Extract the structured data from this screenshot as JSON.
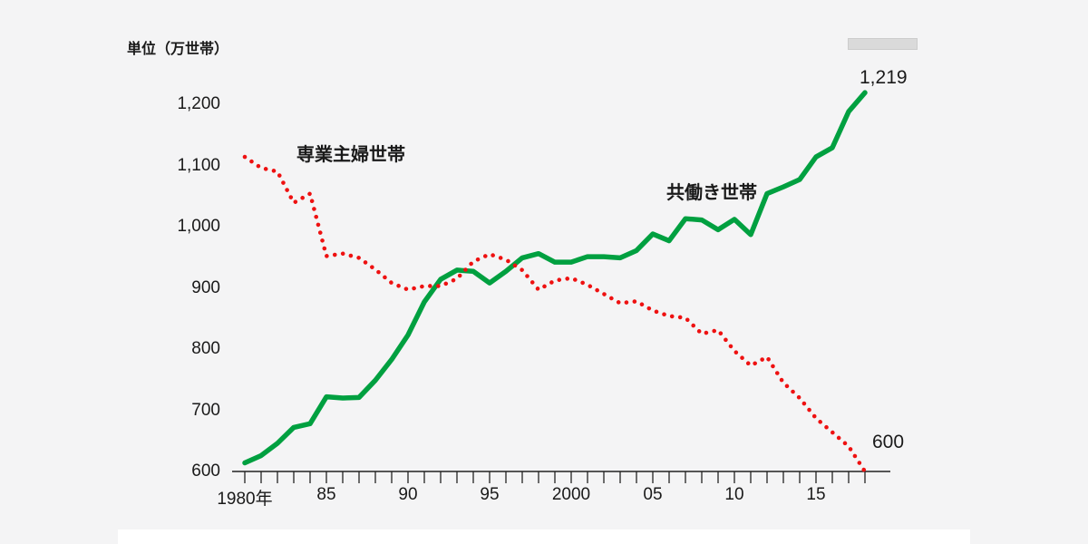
{
  "page": {
    "background_color": "#f4f4f5"
  },
  "chart_data": {
    "type": "line",
    "title": "",
    "unit_label": "単位（万世帯）",
    "xlabel": "",
    "ylabel": "",
    "x_start": 1980,
    "x_end": 2018,
    "x_tick_years": [
      1980,
      1985,
      1990,
      1995,
      2000,
      2005,
      2010,
      2015
    ],
    "x_tick_labels": [
      "1980年",
      "85",
      "90",
      "95",
      "2000",
      "05",
      "10",
      "15"
    ],
    "y_ticks": [
      600,
      700,
      800,
      900,
      1000,
      1100,
      1200
    ],
    "y_tick_labels": [
      "600",
      "700",
      "800",
      "900",
      "1,000",
      "1,100",
      "1,200"
    ],
    "ylim": [
      600,
      1260
    ],
    "grid": false,
    "legend_position": "inline-annotations",
    "series": [
      {
        "name": "専業主婦世帯",
        "style": "dotted",
        "color": "#ee1111",
        "end_label": "600",
        "values": [
          1114,
          1096,
          1090,
          1039,
          1054,
          952,
          956,
          949,
          930,
          908,
          897,
          903,
          903,
          915,
          943,
          955,
          946,
          929,
          897,
          912,
          916,
          905,
          890,
          875,
          878,
          863,
          854,
          851,
          825,
          831,
          797,
          773,
          787,
          745,
          720,
          687,
          664,
          641,
          600
        ]
      },
      {
        "name": "共働き世帯",
        "style": "solid",
        "color": "#00a040",
        "end_label": "1,219",
        "values": [
          614,
          626,
          646,
          672,
          678,
          722,
          720,
          721,
          749,
          783,
          823,
          877,
          914,
          929,
          927,
          908,
          927,
          949,
          956,
          942,
          942,
          951,
          951,
          949,
          961,
          988,
          977,
          1013,
          1011,
          995,
          1012,
          987,
          1054,
          1065,
          1077,
          1114,
          1129,
          1188,
          1219
        ]
      }
    ],
    "annotations": [
      {
        "text": "専業主婦世帯",
        "target_series": "専業主婦世帯"
      },
      {
        "text": "共働き世帯",
        "target_series": "共働き世帯"
      }
    ],
    "axis_color": "#222222"
  }
}
